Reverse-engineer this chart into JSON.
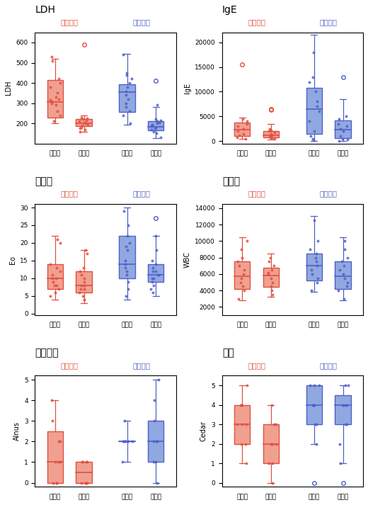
{
  "panels": [
    {
      "title": "LDH",
      "ylabel": "LDH",
      "xlabels": [
        "投与前",
        "投与後",
        "投与前",
        "投与後"
      ],
      "ylim": [
        100,
        650
      ],
      "yticks": [
        200,
        300,
        400,
        500,
        600
      ]
    },
    {
      "title": "IgE",
      "ylabel": "IgE",
      "xlabels": [
        "投与前",
        "投与後",
        "投与前",
        "投与後"
      ],
      "ylim": [
        -500,
        22000
      ],
      "yticks": [
        0,
        5000,
        10000,
        15000,
        20000
      ]
    },
    {
      "title": "好酸球",
      "ylabel": "Eo",
      "xlabels": [
        "投与前",
        "投与後",
        "投与前",
        "投与後"
      ],
      "ylim": [
        -0.5,
        31
      ],
      "yticks": [
        0,
        5,
        10,
        15,
        20,
        25,
        30
      ]
    },
    {
      "title": "白血球",
      "ylabel": "WBC",
      "xlabels": [
        "投与前",
        "投与後",
        "投与前",
        "投与後"
      ],
      "ylim": [
        1000,
        14500
      ],
      "yticks": [
        2000,
        4000,
        6000,
        8000,
        10000,
        12000,
        14000
      ]
    },
    {
      "title": "ハンノキ",
      "ylabel": "Alnus",
      "xlabels": [
        "投与前",
        "投与後",
        "投与前",
        "投与後"
      ],
      "ylim": [
        -0.2,
        5.2
      ],
      "yticks": [
        0,
        1,
        2,
        3,
        4,
        5
      ]
    },
    {
      "title": "スギ",
      "ylabel": "Cedar",
      "xlabels": [
        "投与前",
        "投与後",
        "投与前",
        "投与後"
      ],
      "ylim": [
        -0.2,
        5.5
      ],
      "yticks": [
        0,
        1,
        2,
        3,
        4,
        5
      ]
    }
  ],
  "red_color": "#E05040",
  "red_face": "#F0A090",
  "blue_color": "#5060C8",
  "blue_face": "#90A8E0",
  "label_early": "早期寛解",
  "label_persist": "残存傾向",
  "xpositions": [
    1,
    2,
    3.5,
    4.5
  ],
  "xlim": [
    0.3,
    5.2
  ]
}
